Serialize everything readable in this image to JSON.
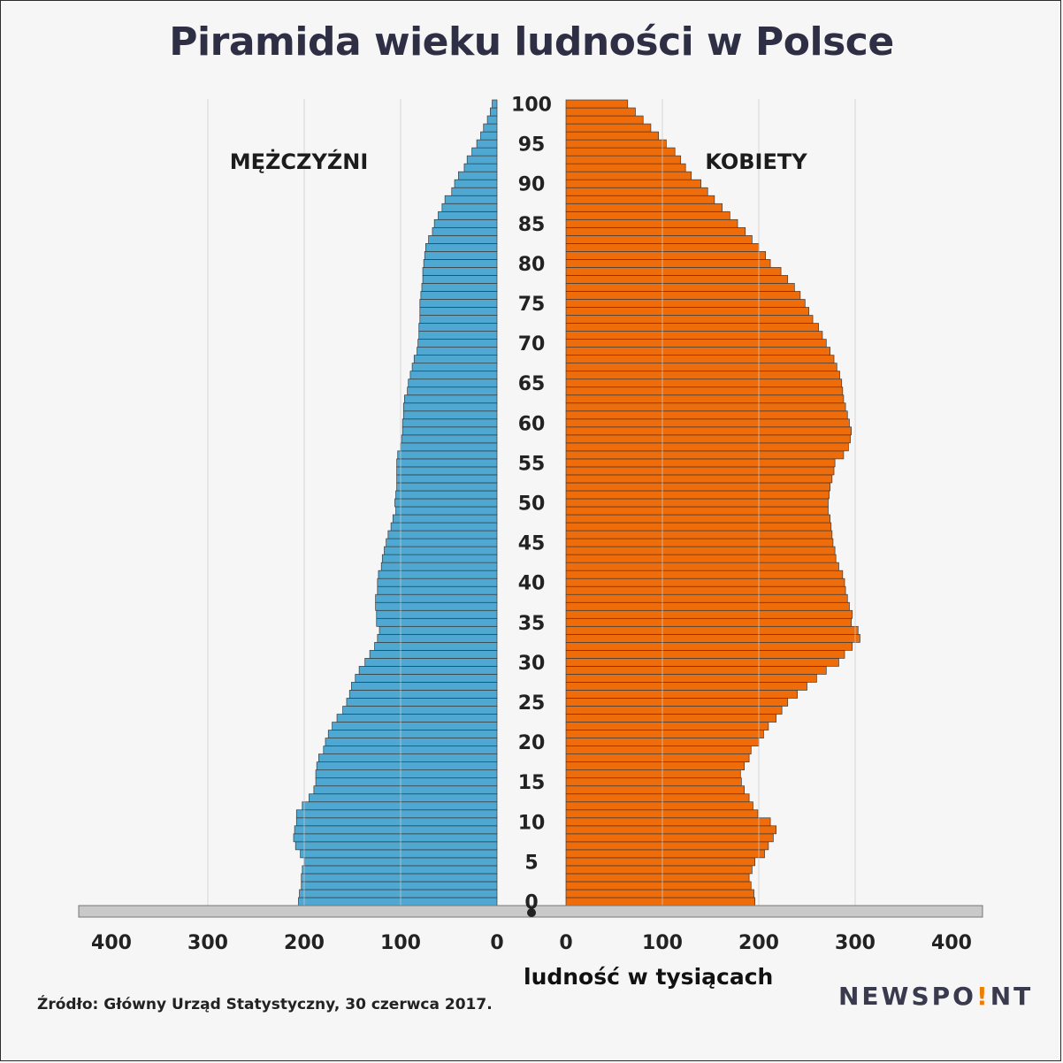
{
  "title": "Piramida wieku ludności w Polsce",
  "left_label": "MĘŻCZYŹNI",
  "right_label": "KOBIETY",
  "xlabel": "ludność w tysiącach",
  "source": "Źródło: Główny Urząd Statystyczny, 30 czerwca 2017.",
  "logo": {
    "before": "NEWSPO",
    "accent": "!",
    "after": "NT"
  },
  "colors": {
    "men": "#4ea8d2",
    "women": "#ef6c0a",
    "title": "#2e2f45",
    "bar_edge": "#3a3a3a"
  },
  "chart_data": {
    "type": "bar",
    "orientation": "horizontal-population-pyramid",
    "ages": [
      0,
      1,
      2,
      3,
      4,
      5,
      6,
      7,
      8,
      9,
      10,
      11,
      12,
      13,
      14,
      15,
      16,
      17,
      18,
      19,
      20,
      21,
      22,
      23,
      24,
      25,
      26,
      27,
      28,
      29,
      30,
      31,
      32,
      33,
      34,
      35,
      36,
      37,
      38,
      39,
      40,
      41,
      42,
      43,
      44,
      45,
      46,
      47,
      48,
      49,
      50,
      51,
      52,
      53,
      54,
      55,
      56,
      57,
      58,
      59,
      60,
      61,
      62,
      63,
      64,
      65,
      66,
      67,
      68,
      69,
      70,
      71,
      72,
      73,
      74,
      75,
      76,
      77,
      78,
      79,
      80,
      81,
      82,
      83,
      84,
      85,
      86,
      87,
      88,
      89,
      90,
      91,
      92,
      93,
      94,
      95,
      96,
      97,
      98,
      99,
      100
    ],
    "age_ticks": [
      0,
      5,
      10,
      15,
      20,
      25,
      30,
      35,
      40,
      45,
      50,
      55,
      60,
      65,
      70,
      75,
      80,
      85,
      90,
      95,
      100
    ],
    "series": [
      {
        "name": "MĘŻCZYŹNI",
        "values": [
          206,
          205,
          203,
          203,
          202,
          200,
          204,
          209,
          211,
          210,
          208,
          208,
          202,
          195,
          190,
          188,
          188,
          187,
          185,
          180,
          178,
          175,
          171,
          166,
          160,
          156,
          153,
          151,
          147,
          143,
          137,
          132,
          127,
          124,
          122,
          125,
          125,
          126,
          126,
          124,
          124,
          123,
          120,
          119,
          117,
          115,
          113,
          110,
          108,
          105,
          106,
          105,
          104,
          104,
          104,
          104,
          103,
          100,
          99,
          98,
          98,
          97,
          97,
          96,
          93,
          92,
          90,
          88,
          86,
          83,
          82,
          81,
          81,
          80,
          80,
          80,
          79,
          78,
          77,
          77,
          76,
          75,
          74,
          71,
          67,
          65,
          61,
          57,
          54,
          47,
          44,
          40,
          34,
          31,
          26,
          21,
          17,
          14,
          10,
          7,
          5
        ]
      },
      {
        "name": "KOBIETY",
        "values": [
          196,
          195,
          192,
          190,
          193,
          196,
          206,
          210,
          215,
          218,
          212,
          199,
          194,
          190,
          185,
          182,
          181,
          185,
          190,
          192,
          200,
          205,
          210,
          218,
          224,
          230,
          240,
          250,
          260,
          270,
          283,
          289,
          297,
          305,
          303,
          296,
          297,
          294,
          292,
          290,
          289,
          287,
          283,
          280,
          279,
          277,
          276,
          275,
          274,
          272,
          272,
          273,
          274,
          276,
          278,
          279,
          288,
          293,
          295,
          296,
          294,
          292,
          290,
          288,
          287,
          286,
          284,
          281,
          278,
          274,
          270,
          266,
          262,
          256,
          252,
          248,
          243,
          237,
          230,
          223,
          212,
          207,
          200,
          193,
          186,
          178,
          170,
          162,
          154,
          147,
          140,
          130,
          124,
          119,
          113,
          104,
          96,
          88,
          80,
          72,
          64
        ]
      }
    ],
    "xticks_left": [
      "400",
      "300",
      "200",
      "100",
      "0"
    ],
    "xticks_right": [
      "0",
      "100",
      "200",
      "300",
      "400"
    ],
    "xlim": [
      0,
      400
    ],
    "grid": true
  }
}
